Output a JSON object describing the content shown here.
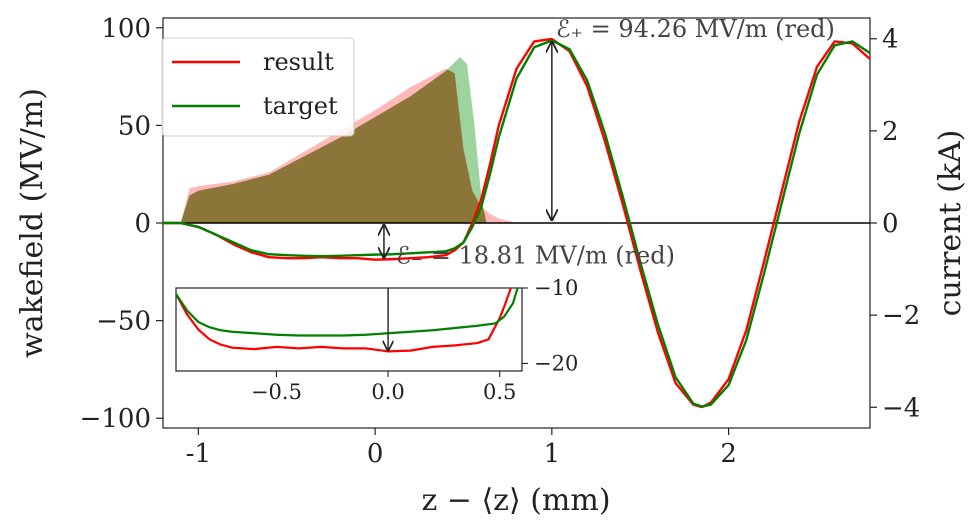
{
  "chart_data": {
    "type": "line",
    "xlabel": "z − ⟨z⟩ (mm)",
    "ylabel_left": "wakefield (MV/m)",
    "ylabel_right": "current (kA)",
    "xlim": [
      -1.2,
      2.8
    ],
    "ylim_left": [
      -105,
      105
    ],
    "ylim_right": [
      -4.45,
      4.45
    ],
    "x_ticks": [
      -1,
      0,
      1,
      2
    ],
    "x_tick_labels": [
      "-1",
      "0",
      "1",
      "2"
    ],
    "y_ticks_left": [
      -100,
      -50,
      0,
      50,
      100
    ],
    "y_tick_labels_left": [
      "−100",
      "−50",
      "0",
      "50",
      "100"
    ],
    "y_ticks_right": [
      -4,
      -2,
      0,
      2,
      4
    ],
    "y_tick_labels_right": [
      "−4",
      "−2",
      "0",
      "2",
      "4"
    ],
    "legend": {
      "position": "top-left",
      "entries": [
        "result",
        "target"
      ]
    },
    "colors": {
      "result": "#ff0000",
      "target": "#008000",
      "result_fill": "#ff8080",
      "target_fill": "#5cb85c",
      "overlap_fill": "#7f6c2a"
    },
    "series": [
      {
        "name": "result",
        "axis": "left",
        "x": [
          -1.2,
          -1.1,
          -1.0,
          -0.9,
          -0.8,
          -0.7,
          -0.6,
          -0.5,
          -0.4,
          -0.3,
          -0.2,
          -0.1,
          0.0,
          0.1,
          0.2,
          0.3,
          0.4,
          0.45,
          0.5,
          0.55,
          0.6,
          0.65,
          0.7,
          0.8,
          0.9,
          1.0,
          1.1,
          1.2,
          1.3,
          1.4,
          1.5,
          1.6,
          1.7,
          1.8,
          1.85,
          1.9,
          2.0,
          2.1,
          2.2,
          2.3,
          2.4,
          2.5,
          2.6,
          2.7,
          2.8
        ],
        "y": [
          0,
          0,
          -2,
          -6,
          -11,
          -15,
          -17.5,
          -18,
          -18,
          -17.5,
          -18,
          -18,
          -18.8,
          -18.5,
          -18,
          -17.5,
          -16.5,
          -14,
          -10,
          0,
          12,
          30,
          50,
          79,
          93,
          94.26,
          88,
          70,
          42,
          10,
          -24,
          -56,
          -82,
          -93,
          -94.3,
          -92,
          -80,
          -55,
          -20,
          16,
          52,
          80,
          93,
          92,
          84
        ]
      },
      {
        "name": "target",
        "axis": "left",
        "x": [
          -1.2,
          -1.1,
          -1.0,
          -0.9,
          -0.8,
          -0.7,
          -0.6,
          -0.5,
          -0.4,
          -0.3,
          -0.2,
          -0.1,
          0.0,
          0.1,
          0.2,
          0.3,
          0.4,
          0.45,
          0.5,
          0.55,
          0.6,
          0.65,
          0.7,
          0.8,
          0.9,
          1.0,
          1.1,
          1.2,
          1.3,
          1.4,
          1.5,
          1.6,
          1.7,
          1.8,
          1.85,
          1.9,
          2.0,
          2.1,
          2.2,
          2.3,
          2.4,
          2.5,
          2.6,
          2.7,
          2.8
        ],
        "y": [
          0,
          0,
          -2,
          -6,
          -10,
          -14,
          -16,
          -16.5,
          -16.8,
          -17,
          -16.8,
          -16.5,
          -16.2,
          -16,
          -15.5,
          -15,
          -14.5,
          -13,
          -10,
          -2,
          8,
          25,
          44,
          74,
          90,
          93.5,
          89,
          73,
          46,
          14,
          -20,
          -52,
          -79,
          -92.5,
          -94,
          -93,
          -83,
          -60,
          -26,
          10,
          46,
          76,
          91,
          93,
          87
        ]
      },
      {
        "name": "result",
        "axis": "right",
        "kind": "area",
        "x": [
          -1.1,
          -1.05,
          -1.0,
          -0.8,
          -0.6,
          -0.4,
          -0.2,
          0.0,
          0.2,
          0.4,
          0.45,
          0.5,
          0.55,
          0.6,
          0.65,
          0.7,
          0.75,
          0.8
        ],
        "y": [
          0.0,
          0.75,
          0.8,
          0.9,
          1.1,
          1.55,
          2.0,
          2.45,
          2.95,
          3.35,
          3.25,
          1.6,
          0.7,
          0.35,
          0.2,
          0.1,
          0.05,
          0.0
        ]
      },
      {
        "name": "target",
        "axis": "right",
        "kind": "area",
        "x": [
          -1.1,
          -1.05,
          -1.0,
          -0.8,
          -0.6,
          -0.4,
          -0.2,
          0.0,
          0.2,
          0.4,
          0.48,
          0.52,
          0.56,
          0.6,
          0.63
        ],
        "y": [
          0.0,
          0.6,
          0.7,
          0.85,
          1.05,
          1.45,
          1.85,
          2.3,
          2.75,
          3.3,
          3.6,
          3.45,
          2.2,
          0.6,
          0.0
        ]
      }
    ],
    "annotations": [
      {
        "text": "ℰ₊ = 94.26 MV/m (red)",
        "x": 1.0,
        "y_from": 0,
        "y_to": 94.26
      },
      {
        "text": "ℰ₋ = 18.81 MV/m (red)",
        "x": 0.05,
        "y_from": 0,
        "y_to": -18.81
      }
    ],
    "inset": {
      "xlim": [
        -0.95,
        0.6
      ],
      "ylim": [
        -21,
        -10
      ],
      "x_ticks": [
        -0.5,
        0.0,
        0.5
      ],
      "x_tick_labels": [
        "−0.5",
        "0.0",
        "0.5"
      ],
      "y_ticks": [
        -10,
        -20
      ],
      "y_tick_labels": [
        "−10",
        "−20"
      ],
      "series": [
        {
          "name": "result",
          "x": [
            -0.95,
            -0.9,
            -0.85,
            -0.8,
            -0.75,
            -0.7,
            -0.6,
            -0.5,
            -0.4,
            -0.3,
            -0.2,
            -0.1,
            0.0,
            0.1,
            0.2,
            0.3,
            0.4,
            0.45,
            0.5,
            0.52,
            0.55
          ],
          "y": [
            -10.8,
            -13.5,
            -15.5,
            -16.8,
            -17.5,
            -17.9,
            -18.1,
            -17.8,
            -18.0,
            -17.8,
            -18.0,
            -18.0,
            -18.4,
            -18.3,
            -17.8,
            -17.6,
            -17.3,
            -16.8,
            -14.0,
            -12.5,
            -10.0
          ]
        },
        {
          "name": "target",
          "x": [
            -0.95,
            -0.9,
            -0.85,
            -0.8,
            -0.75,
            -0.7,
            -0.6,
            -0.5,
            -0.4,
            -0.3,
            -0.2,
            -0.1,
            0.0,
            0.1,
            0.2,
            0.3,
            0.4,
            0.48,
            0.52,
            0.56,
            0.58
          ],
          "y": [
            -10.8,
            -13.0,
            -14.5,
            -15.2,
            -15.6,
            -15.8,
            -16.0,
            -16.2,
            -16.3,
            -16.3,
            -16.3,
            -16.2,
            -16.0,
            -15.8,
            -15.6,
            -15.3,
            -15.0,
            -14.7,
            -13.8,
            -12.0,
            -10.0
          ]
        }
      ],
      "annotation": {
        "x": 0.0,
        "y_from": -10,
        "y_to": -18.4
      }
    }
  }
}
